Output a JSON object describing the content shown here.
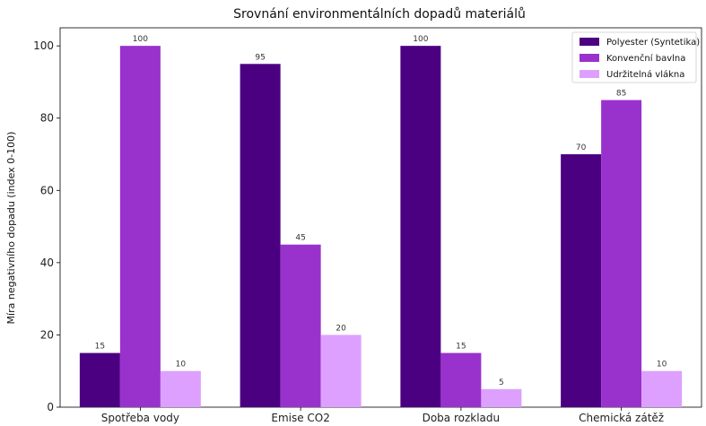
{
  "chart_data": {
    "type": "bar",
    "title": "Srovnání environmentálních dopadů materiálů",
    "xlabel": "",
    "ylabel": "Míra negativního dopadu (index 0-100)",
    "categories": [
      "Spotřeba vody",
      "Emise CO2",
      "Doba rozkladu",
      "Chemická zátěž"
    ],
    "series": [
      {
        "name": "Polyester (Syntetika)",
        "color": "#4b0082",
        "values": [
          15,
          95,
          100,
          70
        ]
      },
      {
        "name": "Konvenční bavlna",
        "color": "#9932cc",
        "values": [
          100,
          45,
          15,
          85
        ]
      },
      {
        "name": "Udržitelná vlákna",
        "color": "#dda0ff",
        "values": [
          10,
          20,
          5,
          10
        ]
      }
    ],
    "ylim": [
      0,
      105
    ],
    "yticks": [
      0,
      20,
      40,
      60,
      80,
      100
    ],
    "grid": false,
    "legend_position": "top-right"
  }
}
